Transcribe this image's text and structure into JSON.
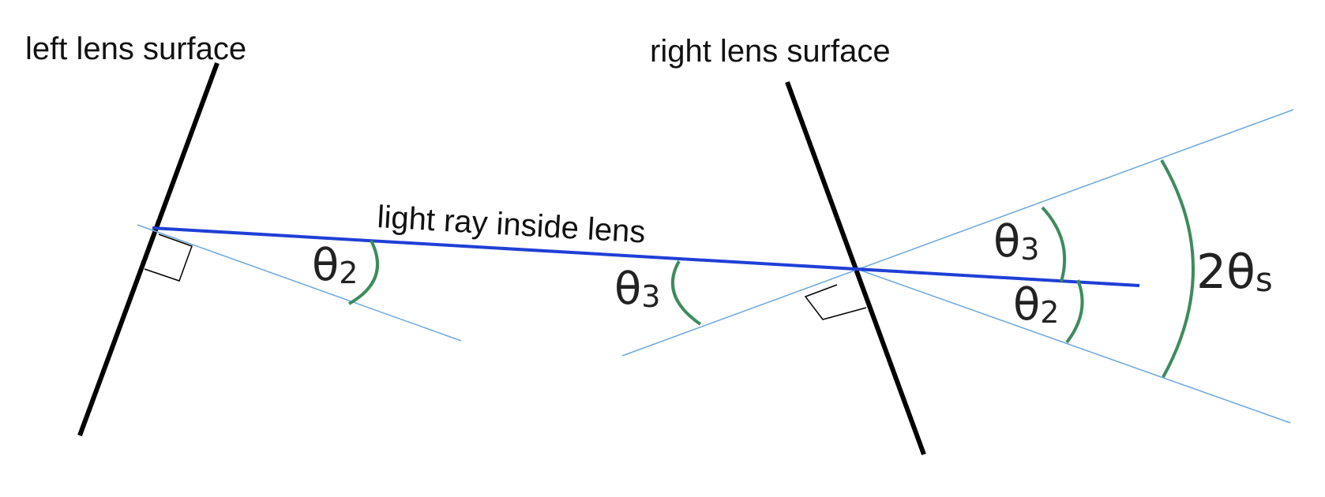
{
  "labels": {
    "left_surface": "left lens surface",
    "right_surface": "right lens surface",
    "ray": "light ray inside lens"
  },
  "angles": {
    "theta2_left": {
      "symbol": "θ",
      "sub": "2"
    },
    "theta3_mid": {
      "symbol": "θ",
      "sub": "3"
    },
    "theta3_right": {
      "symbol": "θ",
      "sub": "3"
    },
    "theta2_right": {
      "symbol": "θ",
      "sub": "2"
    },
    "two_theta_s": {
      "prefix": "2θ",
      "sub": "s"
    }
  },
  "colors": {
    "surface": "#000000",
    "ray": "#1f3fd6",
    "normal": "#6fa8dc",
    "arc": "#3d8b5e",
    "text": "#222222"
  }
}
